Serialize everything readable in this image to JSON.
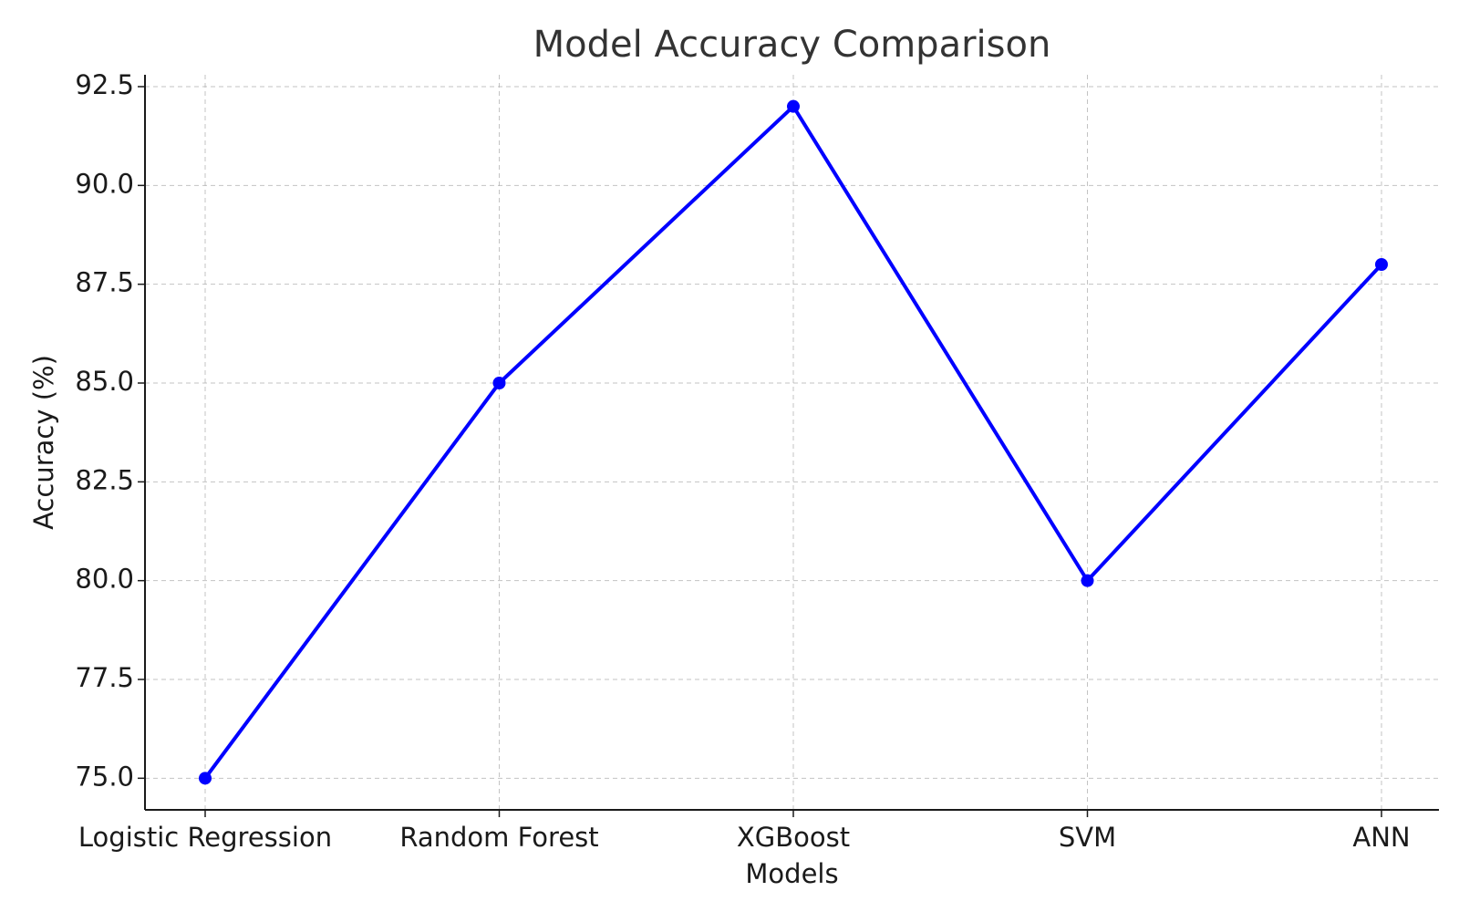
{
  "colors": {
    "series": "#0000ff",
    "axis": "#1a1a1a",
    "grid": "#b0b0b0",
    "title": "#333333"
  },
  "chart_data": {
    "type": "line",
    "title": "Model Accuracy Comparison",
    "xlabel": "Models",
    "ylabel": "Accuracy (%)",
    "categories": [
      "Logistic Regression",
      "Random Forest",
      "XGBoost",
      "SVM",
      "ANN"
    ],
    "series": [
      {
        "values": [
          75,
          85,
          92,
          80,
          88
        ],
        "marker": "circle"
      }
    ],
    "ylim": [
      74.2,
      92.8
    ],
    "yticks": [
      "75.0",
      "77.5",
      "80.0",
      "82.5",
      "85.0",
      "87.5",
      "90.0",
      "92.5"
    ],
    "grid": true,
    "legend": "none"
  }
}
